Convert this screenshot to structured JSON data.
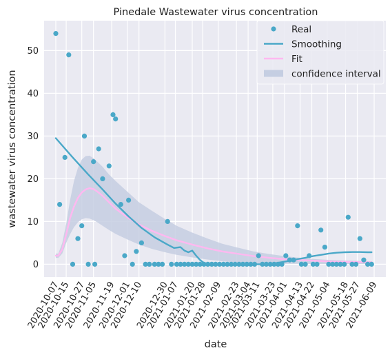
{
  "chart_data": {
    "type": "line",
    "title": "Pinedale Wastewater virus concentration",
    "xlabel": "date",
    "ylabel": "wastewater virus concentration",
    "ylim": [
      -3,
      57
    ],
    "yticks": [
      0,
      10,
      20,
      30,
      40,
      50
    ],
    "xlim": [
      "2020-09-28",
      "2021-06-18"
    ],
    "xtick_labels": [
      "2020-10-07",
      "2020-10-15",
      "2020-10-27",
      "2020-11-05",
      "2020-11-19",
      "2020-12-01",
      "2020-12-10",
      "2020-12-30",
      "2021-01-07",
      "2021-01-20",
      "2021-01-28",
      "2021-02-09",
      "2021-02-23",
      "2021-03-04",
      "2021-03-11",
      "2021-03-23",
      "2021-04-01",
      "2021-04-13",
      "2021-04-22",
      "2021-05-04",
      "2021-05-18",
      "2021-05-27",
      "2021-06-09"
    ],
    "grid": true,
    "legend_position": "top-right",
    "colors": {
      "background": "#eaeaf2",
      "grid": "#ffffff",
      "real": "#4aa8c8",
      "smoothing": "#4aa8c8",
      "fit": "#ffb8f0",
      "confidence": "#c5cee2"
    },
    "series": [
      {
        "name": "Real",
        "kind": "scatter",
        "x": [
          "2020-10-07",
          "2020-10-10",
          "2020-10-14",
          "2020-10-17",
          "2020-10-20",
          "2020-10-24",
          "2020-10-27",
          "2020-10-29",
          "2020-11-01",
          "2020-11-05",
          "2020-11-06",
          "2020-11-09",
          "2020-11-12",
          "2020-11-17",
          "2020-11-20",
          "2020-11-22",
          "2020-11-26",
          "2020-11-29",
          "2020-12-02",
          "2020-12-05",
          "2020-12-08",
          "2020-12-12",
          "2020-12-15",
          "2020-12-18",
          "2020-12-22",
          "2020-12-25",
          "2020-12-28",
          "2021-01-01",
          "2021-01-04",
          "2021-01-08",
          "2021-01-11",
          "2021-01-14",
          "2021-01-17",
          "2021-01-20",
          "2021-01-23",
          "2021-01-26",
          "2021-01-29",
          "2021-02-01",
          "2021-02-04",
          "2021-02-07",
          "2021-02-10",
          "2021-02-13",
          "2021-02-16",
          "2021-02-19",
          "2021-02-22",
          "2021-02-25",
          "2021-02-28",
          "2021-03-03",
          "2021-03-06",
          "2021-03-09",
          "2021-03-12",
          "2021-03-15",
          "2021-03-18",
          "2021-03-21",
          "2021-03-24",
          "2021-03-27",
          "2021-03-30",
          "2021-04-02",
          "2021-04-05",
          "2021-04-08",
          "2021-04-11",
          "2021-04-14",
          "2021-04-17",
          "2021-04-20",
          "2021-04-23",
          "2021-04-26",
          "2021-04-29",
          "2021-05-02",
          "2021-05-05",
          "2021-05-08",
          "2021-05-11",
          "2021-05-14",
          "2021-05-17",
          "2021-05-20",
          "2021-05-23",
          "2021-05-26",
          "2021-05-29",
          "2021-06-01",
          "2021-06-04",
          "2021-06-07"
        ],
        "values": [
          54,
          14,
          25,
          49,
          0,
          6,
          9,
          30,
          0,
          24,
          0,
          27,
          20,
          23,
          35,
          34,
          14,
          2,
          15,
          0,
          3,
          5,
          0,
          0,
          0,
          0,
          0,
          10,
          0,
          0,
          0,
          0,
          0,
          0,
          0,
          0,
          0,
          0,
          0,
          0,
          0,
          0,
          0,
          0,
          0,
          0,
          0,
          0,
          0,
          0,
          2,
          0,
          0,
          0,
          0,
          0,
          0,
          2,
          1,
          1,
          9,
          0,
          0,
          2,
          0,
          0,
          8,
          4,
          0,
          0,
          0,
          0,
          0,
          11,
          0,
          0,
          6,
          1,
          0,
          0
        ]
      },
      {
        "name": "Smoothing",
        "kind": "line",
        "x": [
          "2020-10-07",
          "2020-10-20",
          "2020-11-01",
          "2020-11-12",
          "2020-11-22",
          "2020-12-02",
          "2020-12-12",
          "2020-12-22",
          "2021-01-01",
          "2021-01-06",
          "2021-01-11",
          "2021-01-14",
          "2021-01-17",
          "2021-01-20",
          "2021-01-23",
          "2021-01-26",
          "2021-01-29",
          "2021-02-04",
          "2021-02-10",
          "2021-02-16",
          "2021-02-22",
          "2021-02-28",
          "2021-03-06",
          "2021-03-12",
          "2021-03-18",
          "2021-03-24",
          "2021-03-30",
          "2021-04-05",
          "2021-04-11",
          "2021-04-17",
          "2021-04-23",
          "2021-04-29",
          "2021-05-05",
          "2021-05-11",
          "2021-05-17",
          "2021-05-23",
          "2021-05-29",
          "2021-06-04",
          "2021-06-07"
        ],
        "values": [
          29.5,
          25,
          21,
          17.5,
          14.2,
          11.2,
          8.5,
          6.3,
          4.6,
          3.8,
          4,
          3.2,
          2.8,
          3.2,
          2,
          1,
          0.3,
          0,
          0,
          0,
          0,
          0,
          0,
          0,
          0,
          0.2,
          0.5,
          0.8,
          1.2,
          1.5,
          1.9,
          2.2,
          2.5,
          2.7,
          2.8,
          2.85,
          2.85,
          2.8,
          2.8
        ]
      },
      {
        "name": "Fit",
        "kind": "line",
        "x": [
          "2020-10-07",
          "2020-10-09",
          "2020-10-12",
          "2020-10-15",
          "2020-10-18",
          "2020-10-21",
          "2020-10-24",
          "2020-10-27",
          "2020-10-30",
          "2020-11-02",
          "2020-11-05",
          "2020-11-08",
          "2020-11-12",
          "2020-11-17",
          "2020-11-22",
          "2020-12-01",
          "2020-12-10",
          "2020-12-20",
          "2020-12-30",
          "2021-01-08",
          "2021-01-20",
          "2021-02-01",
          "2021-02-12",
          "2021-02-25",
          "2021-03-08",
          "2021-03-20",
          "2021-04-01",
          "2021-04-13",
          "2021-04-25",
          "2021-05-07",
          "2021-05-19",
          "2021-06-01",
          "2021-06-07"
        ],
        "values": [
          2,
          2,
          3.5,
          7,
          10.8,
          13.5,
          15.5,
          16.8,
          17.5,
          17.8,
          17.6,
          17,
          16,
          14.5,
          13,
          11,
          9.3,
          7.8,
          6.6,
          5.6,
          4.6,
          3.7,
          3,
          2.4,
          1.9,
          1.5,
          1.2,
          1,
          0.8,
          0.65,
          0.55,
          0.5,
          0.45
        ]
      },
      {
        "name": "confidence interval",
        "kind": "band",
        "x": [
          "2020-10-07",
          "2020-10-09",
          "2020-10-12",
          "2020-10-15",
          "2020-10-18",
          "2020-10-21",
          "2020-10-24",
          "2020-10-27",
          "2020-10-30",
          "2020-11-02",
          "2020-11-05",
          "2020-11-08",
          "2020-11-12",
          "2020-11-17",
          "2020-11-22",
          "2020-12-01",
          "2020-12-10",
          "2020-12-20",
          "2020-12-30",
          "2021-01-08",
          "2021-01-20",
          "2021-02-01",
          "2021-02-12",
          "2021-02-25",
          "2021-03-08",
          "2021-03-20",
          "2021-04-01",
          "2021-04-13",
          "2021-04-25",
          "2021-05-07",
          "2021-05-19",
          "2021-06-01",
          "2021-06-07"
        ],
        "lower": [
          1.5,
          1.5,
          2.5,
          5,
          7,
          8.7,
          9.8,
          10.5,
          10.8,
          10.7,
          10.3,
          9.8,
          9,
          8,
          7.1,
          5.8,
          4.6,
          3.6,
          2.8,
          2.2,
          1.6,
          1.1,
          0.7,
          0.4,
          0.2,
          0.1,
          0.1,
          0.1,
          0.05,
          0.05,
          0.05,
          0.05,
          0.05
        ],
        "upper": [
          2.5,
          2.5,
          5,
          9.5,
          15,
          19.5,
          22.5,
          24.5,
          25.3,
          25.4,
          24.8,
          24,
          22.8,
          21,
          19.5,
          17,
          14.5,
          12.5,
          10.6,
          9,
          7.4,
          6,
          4.8,
          3.8,
          3,
          2.4,
          1.9,
          1.5,
          1.2,
          1,
          0.85,
          0.75,
          0.7
        ]
      }
    ]
  }
}
